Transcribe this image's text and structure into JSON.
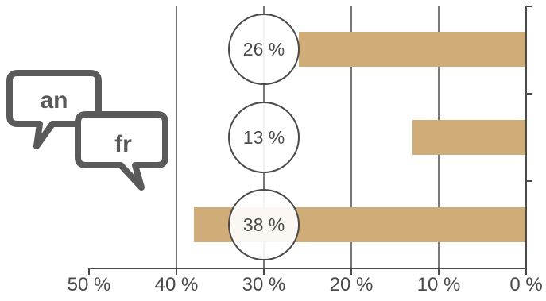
{
  "chart_data": {
    "type": "bar",
    "orientation": "horizontal",
    "x_axis_reversed": true,
    "xlim": [
      0,
      50
    ],
    "x_ticks": [
      {
        "value": 50,
        "label": "50 %"
      },
      {
        "value": 40,
        "label": "40 %"
      },
      {
        "value": 30,
        "label": "30 %"
      },
      {
        "value": 20,
        "label": "20 %"
      },
      {
        "value": 10,
        "label": "10 %"
      },
      {
        "value": 0,
        "label": "0 %"
      }
    ],
    "values": [
      26,
      13,
      38
    ],
    "value_labels": [
      "26 %",
      "13 %",
      "38 %"
    ],
    "grid": "vertical",
    "bar_color": "#cfac78",
    "grid_color": "#4a4a4a",
    "circle_stroke": "#4a4a4a",
    "label_color": "#4a4a4a"
  },
  "icon": {
    "name": "bilingual-speech-bubbles-icon",
    "label_left": "an",
    "label_right": "fr",
    "color": "#5a5a5a"
  }
}
